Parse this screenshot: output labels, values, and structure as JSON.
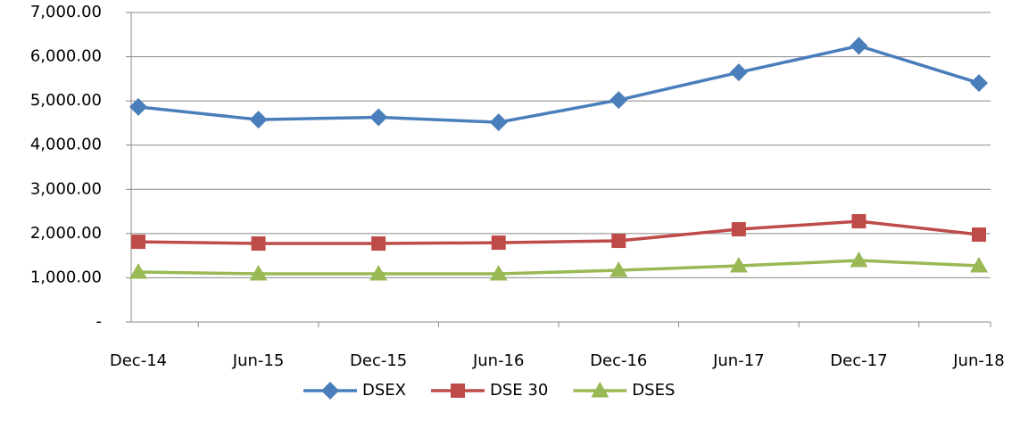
{
  "chart_data": {
    "type": "line",
    "categories": [
      "Dec-14",
      "Jun-15",
      "Dec-15",
      "Jun-16",
      "Dec-16",
      "Jun-17",
      "Dec-17",
      "Jun-18"
    ],
    "series": [
      {
        "name": "DSEX",
        "color": "#4a7ebb",
        "marker": "diamond",
        "values": [
          4865,
          4577,
          4630,
          4516,
          5020,
          5645,
          6245,
          5405
        ]
      },
      {
        "name": "DSE 30",
        "color": "#be4b48",
        "marker": "square",
        "values": [
          1814,
          1774,
          1774,
          1794,
          1835,
          2097,
          2278,
          1976
        ]
      },
      {
        "name": "DSES",
        "color": "#98b954",
        "marker": "triangle",
        "values": [
          1129,
          1089,
          1089,
          1089,
          1169,
          1270,
          1391,
          1270
        ]
      }
    ],
    "ylim": [
      0,
      7000
    ],
    "yticks": [
      {
        "value": 0,
        "label": "-"
      },
      {
        "value": 1000,
        "label": "1,000.00"
      },
      {
        "value": 2000,
        "label": "2,000.00"
      },
      {
        "value": 3000,
        "label": "3,000.00"
      },
      {
        "value": 4000,
        "label": "4,000.00"
      },
      {
        "value": 5000,
        "label": "5,000.00"
      },
      {
        "value": 6000,
        "label": "6,000.00"
      },
      {
        "value": 7000,
        "label": "7,000.00"
      }
    ],
    "grid": true,
    "legend": "bottom"
  }
}
